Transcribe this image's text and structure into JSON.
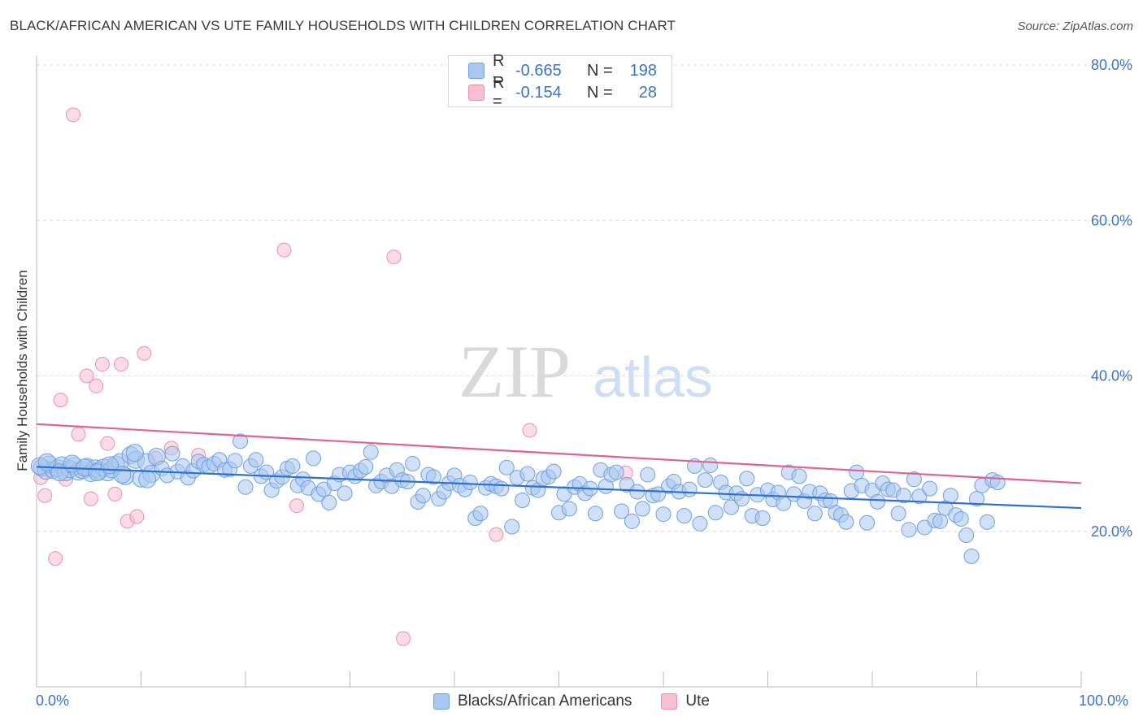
{
  "title": "BLACK/AFRICAN AMERICAN VS UTE FAMILY HOUSEHOLDS WITH CHILDREN CORRELATION CHART",
  "source": "Source: ZipAtlas.com",
  "watermark": {
    "zip": "ZIP",
    "atlas": "atlas"
  },
  "colors": {
    "blue_fill": "#a9c8f0",
    "blue_stroke": "#6f9fe0",
    "blue_line": "#2f6fd0",
    "pink_fill": "#f7bfd0",
    "pink_stroke": "#ec90ae",
    "pink_line": "#e0648e",
    "axis_text": "#3b74c9",
    "grid": "#dadada"
  },
  "legend": {
    "rows": [
      {
        "r_label": "R =",
        "r_value": "-0.665",
        "n_label": "N =",
        "n_value": "198"
      },
      {
        "r_label": "R =",
        "r_value": "-0.154",
        "n_label": "N =",
        "n_value": "28"
      }
    ]
  },
  "bottom_legend": [
    "Blacks/African Americans",
    "Ute"
  ],
  "chart_data": {
    "type": "scatter",
    "title": "BLACK/AFRICAN AMERICAN VS UTE FAMILY HOUSEHOLDS WITH CHILDREN CORRELATION CHART",
    "xlabel": "",
    "ylabel": "Family Households with Children",
    "xlim": [
      0,
      100
    ],
    "ylim": [
      0,
      80
    ],
    "x_tick_labels": [
      "0.0%",
      "100.0%"
    ],
    "y_ticks": [
      20,
      40,
      60,
      80
    ],
    "y_tick_labels": [
      "20.0%",
      "40.0%",
      "60.0%",
      "80.0%"
    ],
    "grid": true,
    "legend_position": "top-center",
    "series": [
      {
        "name": "Blacks/African Americans",
        "r": -0.665,
        "n": 198,
        "trend": {
          "x": [
            0,
            100
          ],
          "y": [
            28.3,
            23.0
          ]
        },
        "points": [
          [
            0.5,
            28.2
          ],
          [
            0.9,
            27.8
          ],
          [
            1.2,
            28.6
          ],
          [
            1.6,
            27.9
          ],
          [
            2.0,
            28.1
          ],
          [
            2.4,
            28.5
          ],
          [
            2.8,
            27.6
          ],
          [
            3.2,
            28.0
          ],
          [
            3.6,
            28.4
          ],
          [
            4.0,
            27.7
          ],
          [
            4.4,
            27.9
          ],
          [
            4.8,
            28.3
          ],
          [
            5.2,
            27.5
          ],
          [
            5.6,
            28.1
          ],
          [
            6.0,
            27.8
          ],
          [
            6.4,
            28.2
          ],
          [
            6.8,
            27.6
          ],
          [
            7.2,
            28.0
          ],
          [
            7.6,
            28.6
          ],
          [
            8.0,
            28.9
          ],
          [
            8.5,
            27.1
          ],
          [
            9.0,
            29.8
          ],
          [
            9.5,
            29.2
          ],
          [
            10.0,
            26.8
          ],
          [
            10.5,
            28.9
          ],
          [
            11.0,
            27.4
          ],
          [
            11.5,
            29.6
          ],
          [
            12.0,
            28.1
          ],
          [
            12.5,
            27.2
          ],
          [
            13.0,
            30.0
          ],
          [
            13.5,
            27.7
          ],
          [
            14.0,
            28.4
          ],
          [
            14.5,
            26.9
          ],
          [
            15.0,
            27.8
          ],
          [
            15.5,
            29.0
          ],
          [
            16.0,
            28.6
          ],
          [
            16.5,
            28.3
          ],
          [
            17.0,
            28.7
          ],
          [
            17.5,
            29.2
          ],
          [
            18.0,
            27.9
          ],
          [
            18.5,
            28.0
          ],
          [
            19.0,
            29.1
          ],
          [
            19.5,
            31.6
          ],
          [
            20.0,
            25.7
          ],
          [
            20.5,
            28.4
          ],
          [
            21.0,
            29.2
          ],
          [
            21.5,
            27.1
          ],
          [
            22.0,
            27.6
          ],
          [
            22.5,
            25.3
          ],
          [
            23.0,
            26.5
          ],
          [
            23.5,
            27.0
          ],
          [
            24.0,
            28.1
          ],
          [
            24.5,
            28.4
          ],
          [
            25.0,
            25.9
          ],
          [
            25.5,
            26.7
          ],
          [
            26.0,
            25.6
          ],
          [
            26.5,
            29.4
          ],
          [
            27.0,
            24.8
          ],
          [
            27.5,
            25.4
          ],
          [
            28.0,
            23.7
          ],
          [
            28.5,
            26.2
          ],
          [
            29.0,
            27.3
          ],
          [
            29.5,
            24.9
          ],
          [
            30.0,
            27.6
          ],
          [
            30.5,
            27.1
          ],
          [
            31.0,
            27.8
          ],
          [
            31.5,
            28.3
          ],
          [
            32.0,
            30.2
          ],
          [
            32.5,
            25.9
          ],
          [
            33.0,
            26.4
          ],
          [
            33.5,
            27.2
          ],
          [
            34.0,
            25.8
          ],
          [
            34.5,
            27.9
          ],
          [
            35.0,
            26.6
          ],
          [
            35.5,
            26.4
          ],
          [
            36.0,
            28.7
          ],
          [
            36.5,
            23.8
          ],
          [
            37.0,
            24.6
          ],
          [
            37.5,
            27.3
          ],
          [
            38.0,
            27.0
          ],
          [
            38.5,
            24.2
          ],
          [
            39.0,
            25.1
          ],
          [
            39.5,
            26.2
          ],
          [
            40.0,
            27.2
          ],
          [
            40.5,
            25.9
          ],
          [
            41.0,
            25.4
          ],
          [
            41.5,
            26.3
          ],
          [
            42.0,
            21.7
          ],
          [
            42.5,
            22.3
          ],
          [
            43.0,
            25.6
          ],
          [
            43.5,
            26.1
          ],
          [
            44.0,
            25.8
          ],
          [
            44.5,
            25.5
          ],
          [
            45.0,
            28.2
          ],
          [
            45.5,
            20.6
          ],
          [
            46.0,
            26.9
          ],
          [
            46.5,
            24.0
          ],
          [
            47.0,
            27.4
          ],
          [
            47.5,
            25.6
          ],
          [
            48.0,
            25.3
          ],
          [
            48.5,
            26.8
          ],
          [
            49.0,
            27.0
          ],
          [
            49.5,
            27.7
          ],
          [
            50.0,
            22.4
          ],
          [
            50.5,
            24.8
          ],
          [
            51.0,
            22.9
          ],
          [
            51.5,
            25.7
          ],
          [
            52.0,
            26.1
          ],
          [
            52.5,
            24.9
          ],
          [
            53.0,
            25.5
          ],
          [
            53.5,
            22.3
          ],
          [
            54.0,
            27.9
          ],
          [
            54.5,
            25.8
          ],
          [
            55.0,
            27.3
          ],
          [
            55.5,
            27.6
          ],
          [
            56.0,
            22.6
          ],
          [
            56.5,
            26.0
          ],
          [
            57.0,
            21.3
          ],
          [
            57.5,
            25.1
          ],
          [
            58.0,
            22.9
          ],
          [
            58.5,
            27.3
          ],
          [
            59.0,
            24.6
          ],
          [
            59.5,
            24.8
          ],
          [
            60.0,
            22.2
          ],
          [
            60.5,
            25.8
          ],
          [
            61.0,
            26.4
          ],
          [
            61.5,
            25.1
          ],
          [
            62.0,
            22.0
          ],
          [
            62.5,
            25.4
          ],
          [
            63.0,
            28.4
          ],
          [
            63.5,
            21.0
          ],
          [
            64.0,
            26.6
          ],
          [
            64.5,
            28.5
          ],
          [
            65.0,
            22.4
          ],
          [
            65.5,
            26.3
          ],
          [
            66.0,
            25.0
          ],
          [
            66.5,
            23.1
          ],
          [
            67.0,
            24.9
          ],
          [
            67.5,
            24.2
          ],
          [
            68.0,
            26.8
          ],
          [
            68.5,
            22.0
          ],
          [
            69.0,
            24.7
          ],
          [
            69.5,
            21.7
          ],
          [
            70.0,
            25.3
          ],
          [
            70.5,
            24.1
          ],
          [
            71.0,
            25.0
          ],
          [
            71.5,
            23.6
          ],
          [
            72.0,
            27.6
          ],
          [
            72.5,
            24.8
          ],
          [
            73.0,
            27.1
          ],
          [
            73.5,
            23.9
          ],
          [
            74.0,
            25.1
          ],
          [
            74.5,
            22.3
          ],
          [
            75.0,
            24.9
          ],
          [
            75.5,
            24.0
          ],
          [
            76.0,
            23.9
          ],
          [
            76.5,
            22.4
          ],
          [
            77.0,
            22.1
          ],
          [
            77.5,
            21.2
          ],
          [
            78.0,
            25.2
          ],
          [
            78.5,
            27.6
          ],
          [
            79.0,
            25.9
          ],
          [
            79.5,
            21.1
          ],
          [
            80.0,
            25.3
          ],
          [
            80.5,
            23.8
          ],
          [
            81.0,
            26.2
          ],
          [
            81.5,
            25.4
          ],
          [
            82.0,
            25.3
          ],
          [
            82.5,
            22.3
          ],
          [
            83.0,
            24.6
          ],
          [
            83.5,
            20.2
          ],
          [
            84.0,
            26.7
          ],
          [
            84.5,
            24.5
          ],
          [
            85.0,
            20.5
          ],
          [
            85.5,
            25.5
          ],
          [
            86.0,
            21.4
          ],
          [
            86.5,
            21.3
          ],
          [
            87.0,
            23.0
          ],
          [
            87.5,
            24.6
          ],
          [
            88.0,
            22.1
          ],
          [
            88.5,
            21.6
          ],
          [
            89.0,
            19.5
          ],
          [
            89.5,
            16.8
          ],
          [
            90.0,
            24.2
          ],
          [
            90.5,
            25.9
          ],
          [
            91.0,
            21.2
          ],
          [
            91.5,
            26.6
          ],
          [
            92.0,
            26.3
          ],
          [
            0.3,
            28.4
          ],
          [
            1.0,
            28.9
          ],
          [
            2.2,
            27.6
          ],
          [
            3.4,
            28.7
          ],
          [
            4.6,
            28.2
          ],
          [
            5.8,
            27.6
          ],
          [
            7.0,
            28.5
          ],
          [
            8.2,
            27.3
          ],
          [
            9.4,
            30.1
          ],
          [
            10.6,
            26.7
          ]
        ]
      },
      {
        "name": "Ute",
        "r": -0.154,
        "n": 28,
        "trend": {
          "x": [
            0,
            100
          ],
          "y": [
            33.8,
            26.2
          ]
        },
        "points": [
          [
            0.4,
            26.9
          ],
          [
            0.8,
            24.6
          ],
          [
            1.4,
            27.9
          ],
          [
            1.8,
            16.5
          ],
          [
            2.3,
            36.9
          ],
          [
            2.8,
            26.7
          ],
          [
            3.5,
            73.6
          ],
          [
            4.0,
            32.5
          ],
          [
            4.8,
            40.0
          ],
          [
            5.2,
            24.2
          ],
          [
            5.7,
            38.7
          ],
          [
            6.3,
            41.5
          ],
          [
            6.8,
            31.3
          ],
          [
            7.5,
            24.8
          ],
          [
            8.1,
            41.5
          ],
          [
            8.7,
            21.3
          ],
          [
            9.6,
            21.9
          ],
          [
            10.3,
            42.9
          ],
          [
            11.4,
            29.4
          ],
          [
            12.9,
            30.7
          ],
          [
            15.5,
            29.8
          ],
          [
            23.7,
            56.2
          ],
          [
            24.9,
            23.3
          ],
          [
            34.2,
            55.3
          ],
          [
            35.1,
            6.2
          ],
          [
            44.0,
            19.6
          ],
          [
            47.2,
            33.0
          ],
          [
            56.4,
            27.5
          ]
        ]
      }
    ]
  }
}
